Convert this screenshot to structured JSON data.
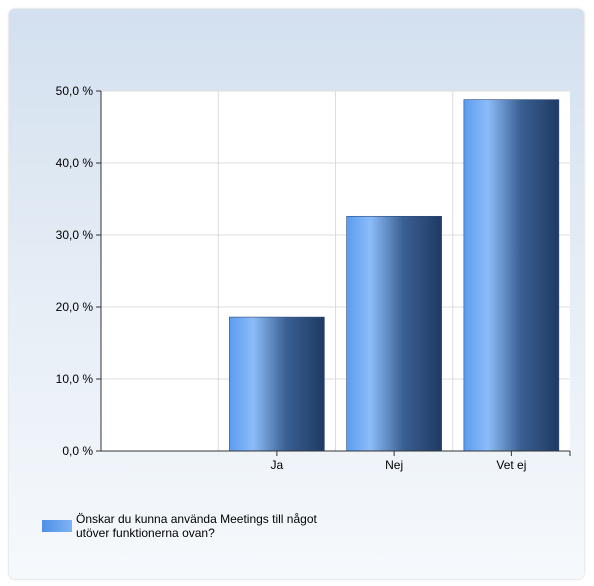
{
  "chart_data": {
    "type": "bar",
    "categories": [
      "Ja",
      "Nej",
      "Vet ej"
    ],
    "series": [
      {
        "name": "Önskar du kunna använda Meetings till något utöver funktionerna ovan?",
        "values": [
          18.6,
          32.6,
          48.8
        ]
      }
    ],
    "y_ticks": [
      "0,0 %",
      "10,0 %",
      "20,0 %",
      "30,0 %",
      "40,0 %",
      "50,0 %"
    ],
    "ylim": [
      0,
      50
    ],
    "grid": true,
    "legend_position": "bottom-left",
    "bar_gradient": [
      "#5b9cf0",
      "#8cbcf8",
      "#3a5f92",
      "#1f3a63"
    ]
  }
}
